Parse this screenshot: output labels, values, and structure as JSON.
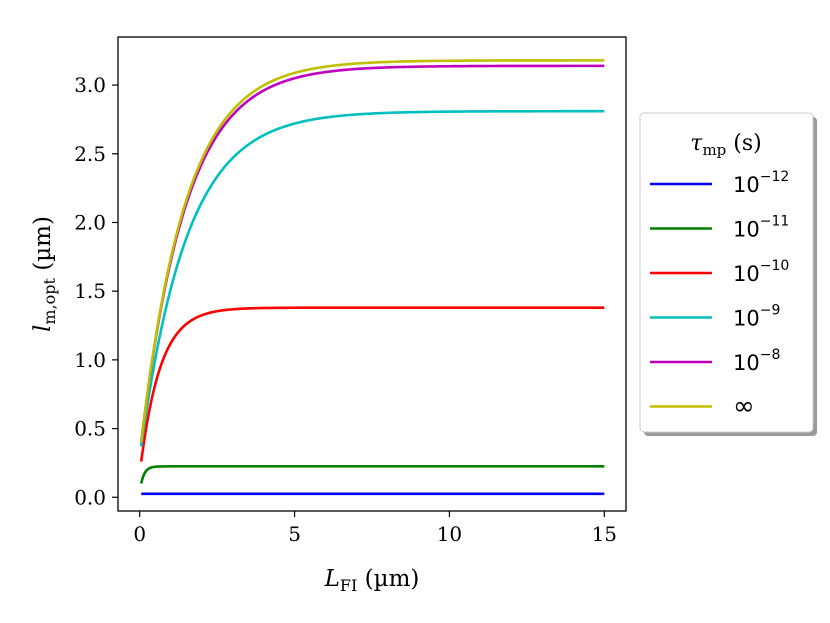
{
  "chart_data": {
    "type": "line",
    "xlabel": {
      "main": "L",
      "sub": "FI",
      "unit": " (µm)"
    },
    "ylabel": {
      "main": "l",
      "sub": "m,opt",
      "unit": " (µm)"
    },
    "xlim": [
      -0.7,
      15.7
    ],
    "ylim": [
      -0.1,
      3.35
    ],
    "xticks": [
      0,
      5,
      10,
      15
    ],
    "xtick_labels": [
      "0",
      "5",
      "10",
      "15"
    ],
    "yticks": [
      0.0,
      0.5,
      1.0,
      1.5,
      2.0,
      2.5,
      3.0
    ],
    "ytick_labels": [
      "0.0",
      "0.5",
      "1.0",
      "1.5",
      "2.0",
      "2.5",
      "3.0"
    ],
    "x_range": [
      0.05,
      15
    ],
    "legend": {
      "title": {
        "main": "τ",
        "sub": "mp",
        "unit": " (s)"
      },
      "placement": "outside-right"
    },
    "series": [
      {
        "name": "10^-12",
        "base": "10",
        "exp": "−12",
        "color": "#0000ff",
        "plateau": 0.025,
        "start": 0.025,
        "tau": 0.02
      },
      {
        "name": "10^-11",
        "base": "10",
        "exp": "−11",
        "color": "#008000",
        "plateau": 0.225,
        "start": 0.1,
        "tau": 0.12
      },
      {
        "name": "10^-10",
        "base": "10",
        "exp": "−10",
        "color": "#ff0000",
        "plateau": 1.38,
        "start": 0.26,
        "tau": 0.65
      },
      {
        "name": "10^-9",
        "base": "10",
        "exp": "−9",
        "color": "#00bfbf",
        "plateau": 2.81,
        "start": 0.37,
        "tau": 1.5
      },
      {
        "name": "10^-8",
        "base": "10",
        "exp": "−8",
        "color": "#bf00bf",
        "plateau": 3.14,
        "start": 0.4,
        "tau": 1.45
      },
      {
        "name": "infinity",
        "base": "∞",
        "exp": "",
        "color": "#bfbf00",
        "plateau": 3.18,
        "start": 0.4,
        "tau": 1.45
      }
    ]
  }
}
